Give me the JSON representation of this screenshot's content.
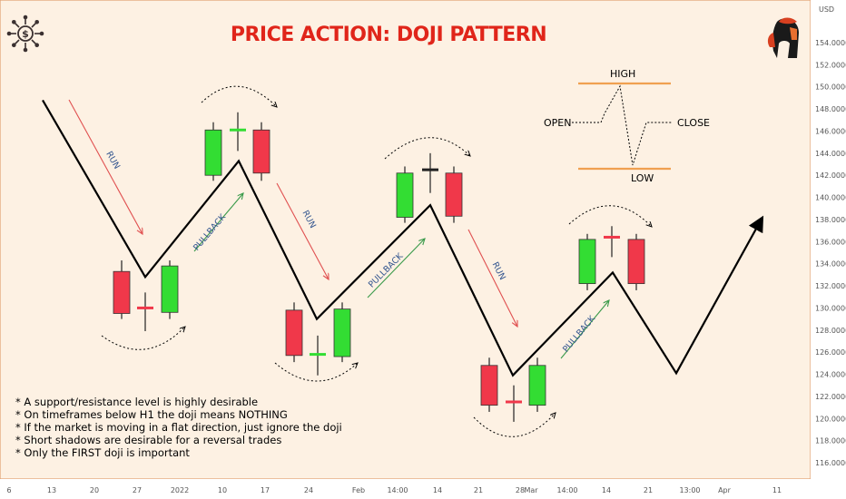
{
  "title": "PRICE ACTION: DOJI PATTERN",
  "currency": "USD",
  "colors": {
    "background": "#fdf1e3",
    "border": "#e0a070",
    "title": "#e0251a",
    "bull": "#33dd33",
    "bear": "#f0384a",
    "path": "#000000",
    "run_arrow": "#e05050",
    "pullback_arrow": "#3a9a4a",
    "label_blue": "#33558f",
    "legend_line": "#f0a050"
  },
  "icons": {
    "left_logo": "dollar-gear-icon",
    "right_logo": "spartan-helmet-icon"
  },
  "chart_data": {
    "type": "line",
    "title": "PRICE ACTION: DOJI PATTERN",
    "ylim": [
      115,
      156
    ],
    "y_ticks": [
      "154.000000",
      "152.000000",
      "150.000000",
      "148.000000",
      "146.000000",
      "144.000000",
      "142.000000",
      "140.000000",
      "138.000000",
      "136.000000",
      "134.000000",
      "132.000000",
      "130.000000",
      "128.000000",
      "126.000000",
      "124.000000",
      "122.000000",
      "120.000000",
      "118.000000",
      "116.000000"
    ],
    "x_ticks": [
      "6",
      "13",
      "20",
      "27",
      "2022",
      "10",
      "17",
      "24",
      "Feb",
      "14:00",
      "14",
      "21",
      "28",
      "Mar",
      "14:00",
      "14",
      "21",
      "13:00",
      "Apr",
      "11"
    ],
    "grid": false,
    "price_path": {
      "x": [
        0,
        1.4,
        2.4,
        3.6,
        4.5,
        6.0,
        7.0,
        7.6,
        8.8
      ],
      "y": [
        148.8,
        132.8,
        143.3,
        129.0,
        139.3,
        123.9,
        133.2,
        124.1,
        138.2
      ]
    },
    "annotations": [
      "RUN",
      "PULLBACK",
      "RUN",
      "PULLBACK",
      "RUN",
      "PULLBACK"
    ],
    "doji_groups": [
      {
        "candles": [
          {
            "type": "bear",
            "open": 133.3,
            "close": 129.5,
            "high": 134.3,
            "low": 129.0
          },
          {
            "type": "doji",
            "open": 130.0,
            "close": 129.8,
            "high": 131.4,
            "low": 127.9
          },
          {
            "type": "bull",
            "open": 129.6,
            "close": 133.8,
            "high": 134.3,
            "low": 129.0
          }
        ]
      },
      {
        "candles": [
          {
            "type": "bull",
            "open": 142.0,
            "close": 146.1,
            "high": 146.8,
            "low": 141.5
          },
          {
            "type": "doji",
            "open": 146.1,
            "close": 145.9,
            "high": 147.7,
            "low": 144.2
          },
          {
            "type": "bear",
            "open": 146.1,
            "close": 142.2,
            "high": 146.8,
            "low": 141.5
          }
        ]
      },
      {
        "candles": [
          {
            "type": "bear",
            "open": 129.8,
            "close": 125.7,
            "high": 130.5,
            "low": 125.1
          },
          {
            "type": "doji",
            "open": 125.8,
            "close": 125.6,
            "high": 127.5,
            "low": 123.9
          },
          {
            "type": "bull",
            "open": 125.6,
            "close": 129.9,
            "high": 130.5,
            "low": 125.1
          }
        ]
      },
      {
        "candles": [
          {
            "type": "bull",
            "open": 138.2,
            "close": 142.2,
            "high": 142.8,
            "low": 137.7
          },
          {
            "type": "doji",
            "open": 142.5,
            "close": 142.3,
            "high": 144.0,
            "low": 140.4
          },
          {
            "type": "bear",
            "open": 142.2,
            "close": 138.3,
            "high": 142.8,
            "low": 137.7
          }
        ]
      },
      {
        "candles": [
          {
            "type": "bear",
            "open": 124.8,
            "close": 121.2,
            "high": 125.5,
            "low": 120.6
          },
          {
            "type": "doji",
            "open": 121.5,
            "close": 121.3,
            "high": 123.0,
            "low": 119.7
          },
          {
            "type": "bull",
            "open": 121.2,
            "close": 124.8,
            "high": 125.5,
            "low": 120.6
          }
        ]
      },
      {
        "candles": [
          {
            "type": "bull",
            "open": 132.2,
            "close": 136.2,
            "high": 136.7,
            "low": 131.6
          },
          {
            "type": "doji",
            "open": 136.4,
            "close": 136.2,
            "high": 137.4,
            "low": 134.6
          },
          {
            "type": "bear",
            "open": 136.2,
            "close": 132.2,
            "high": 136.7,
            "low": 131.6
          }
        ]
      }
    ]
  },
  "legend": {
    "high": "HIGH",
    "low": "LOW",
    "open": "OPEN",
    "close": "CLOSE"
  },
  "notes": [
    "* A support/resistance level is highly desirable",
    "* On timeframes below H1 the doji means NOTHING",
    "* If the market is moving in a flat direction, just ignore the doji",
    "* Short shadows are desirable for a reversal trades",
    "* Only the FIRST doji is important"
  ]
}
